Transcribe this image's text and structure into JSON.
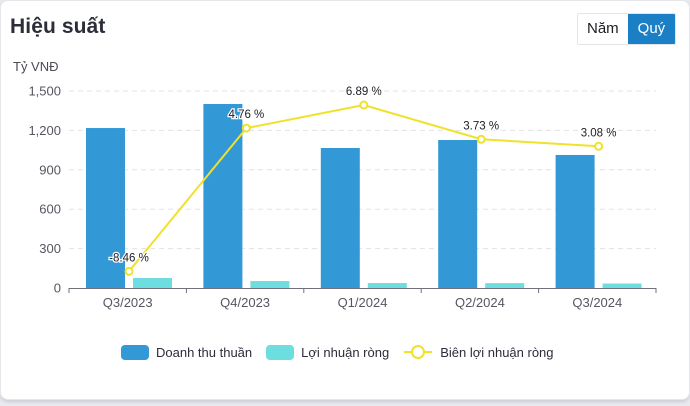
{
  "header": {
    "title": "Hiệu suất",
    "toggle": [
      {
        "label": "Năm",
        "active": false
      },
      {
        "label": "Quý",
        "active": true
      }
    ]
  },
  "colors": {
    "revenue": "#3399d6",
    "profit": "#6ddee0",
    "margin": "#f0e12a",
    "accent": "#1a7fc4"
  },
  "chart_data": {
    "type": "bar",
    "title": "Hiệu suất",
    "ylabel": "Tỷ VNĐ",
    "xlabel": "",
    "ylim": [
      0,
      1500
    ],
    "yticks": [
      "0",
      "300",
      "600",
      "900",
      "1,200",
      "1,500"
    ],
    "grid": true,
    "legend_position": "bottom",
    "categories": [
      "Q3/2023",
      "Q4/2023",
      "Q1/2024",
      "Q2/2024",
      "Q3/2024"
    ],
    "series": [
      {
        "name": "Doanh thu thuần",
        "type": "bar",
        "values": [
          1218,
          1401,
          1066,
          1127,
          1013
        ]
      },
      {
        "name": "Lợi nhuận ròng",
        "type": "bar",
        "values": [
          76,
          53,
          38,
          37,
          34
        ]
      },
      {
        "name": "Biên lợi nhuận ròng",
        "type": "line",
        "unit": "%",
        "values": [
          -8.46,
          4.76,
          6.89,
          3.73,
          3.08
        ],
        "labels": [
          "-8.46 %",
          "4.76 %",
          "6.89 %",
          "3.73 %",
          "3.08 %"
        ]
      }
    ]
  }
}
